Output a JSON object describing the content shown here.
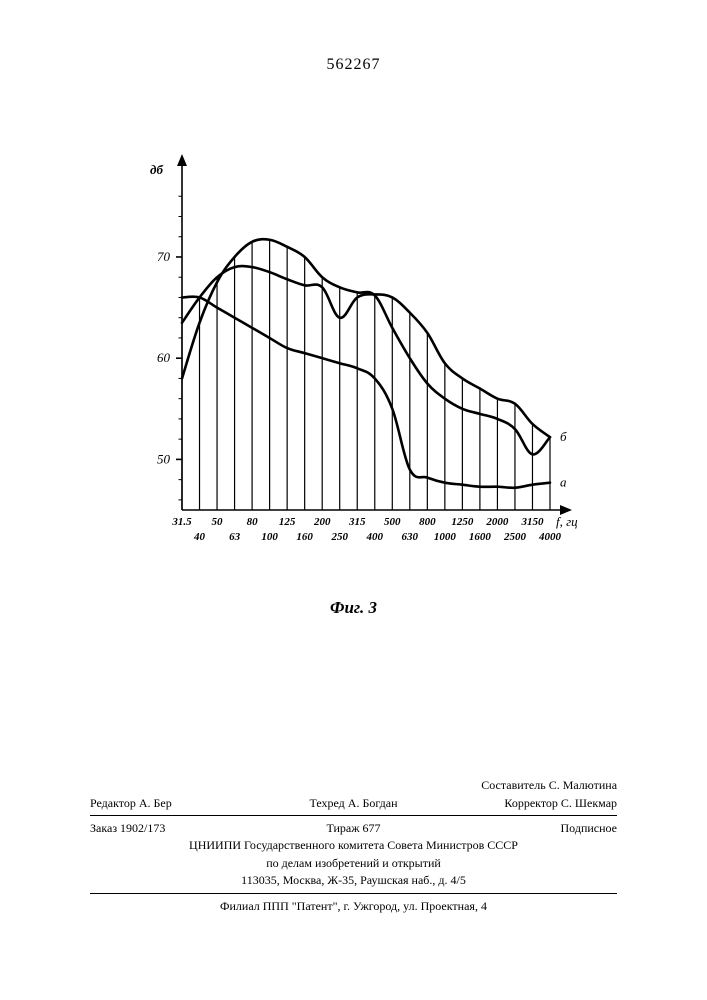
{
  "patent_number": "562267",
  "figure": {
    "caption": "Фиг. 3",
    "y_axis_label": "дб",
    "x_axis_label": "f, гц",
    "y_ticks": [
      50,
      60,
      70
    ],
    "y_min": 45,
    "y_max": 78,
    "x_ticks_top_row": [
      "31.5",
      "50",
      "80",
      "125",
      "200",
      "315",
      "500",
      "800",
      "1250",
      "2000",
      "3150"
    ],
    "x_ticks_bottom_row": [
      "40",
      "63",
      "100",
      "160",
      "250",
      "400",
      "630",
      "1000",
      "1600",
      "2500",
      "4000"
    ],
    "n_divisions": 22,
    "series": [
      {
        "label": "а",
        "data": [
          66,
          66,
          65,
          64,
          63,
          62,
          61,
          60.5,
          60,
          59.5,
          59,
          58,
          55,
          49,
          48.2,
          47.7,
          47.5,
          47.3,
          47.3,
          47.2,
          47.5,
          47.7
        ]
      },
      {
        "label": "б",
        "data": [
          58,
          63.5,
          67.5,
          70,
          71.5,
          71.7,
          71,
          70,
          68,
          67,
          66.5,
          66.2,
          63,
          60,
          57.5,
          56,
          55,
          54.5,
          54,
          53,
          50.5,
          52.2
        ]
      },
      {
        "label": "",
        "data": [
          63.5,
          66,
          68,
          69,
          69,
          68.5,
          67.8,
          67.2,
          67,
          64,
          66,
          66.3,
          66,
          64.5,
          62.5,
          59.5,
          58,
          57,
          56,
          55.5,
          53.5,
          52.2
        ]
      }
    ],
    "stroke_color": "#000000",
    "stroke_width_axis": 1.6,
    "stroke_width_curve": 2.6,
    "hatch_width": 1.2,
    "label_fontsize": 13,
    "tick_fontsize": 11
  },
  "credits": {
    "compiler": "Составитель С. Малютина",
    "editor": "Редактор А. Бер",
    "tekhred": "Техред А. Богдан",
    "corrector": "Корректор С. Шекмар",
    "order": "Заказ 1902/173",
    "tirage": "Тираж 677",
    "subscribed": "Подписное",
    "org1": "ЦНИИПИ Государственного комитета Совета Министров СССР",
    "org2": "по делам изобретений и открытий",
    "addr": "113035, Москва, Ж-35, Раушская наб., д. 4/5",
    "branch": "Филиал ППП \"Патент\", г. Ужгород, ул. Проектная, 4"
  }
}
